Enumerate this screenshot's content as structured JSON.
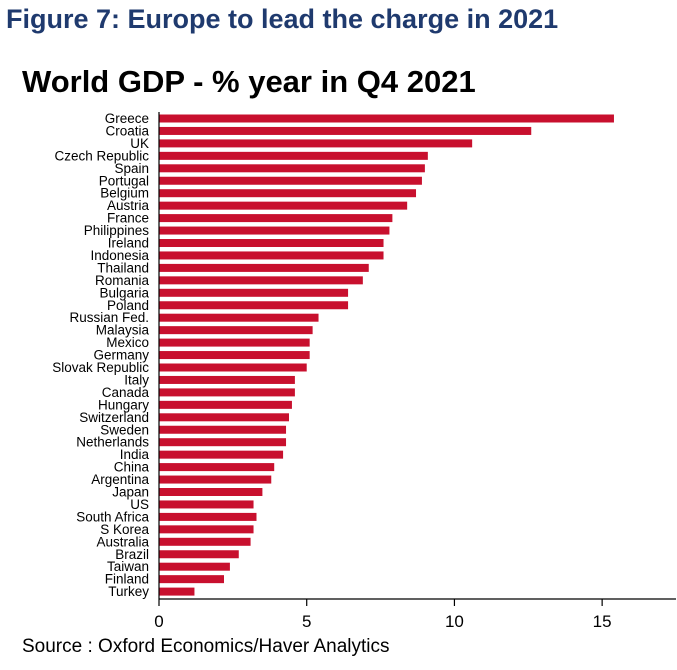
{
  "figure_title": "Figure 7: Europe to lead the charge in 2021",
  "source": "Source : Oxford Economics/Haver Analytics",
  "colors": {
    "bar": "#c8102e",
    "figure_title": "#1f3a6e"
  },
  "chart_data": {
    "type": "bar",
    "orientation": "horizontal",
    "title": "World GDP - % year in Q4 2021",
    "xlabel": "",
    "ylabel": "",
    "xlim": [
      0,
      17.5
    ],
    "xticks": [
      0,
      5,
      10,
      15
    ],
    "grid": false,
    "categories": [
      "Greece",
      "Croatia",
      "UK",
      "Czech Republic",
      "Spain",
      "Portugal",
      "Belgium",
      "Austria",
      "France",
      "Philippines",
      "Ireland",
      "Indonesia",
      "Thailand",
      "Romania",
      "Bulgaria",
      "Poland",
      "Russian Fed.",
      "Malaysia",
      "Mexico",
      "Germany",
      "Slovak Republic",
      "Italy",
      "Canada",
      "Hungary",
      "Switzerland",
      "Sweden",
      "Netherlands",
      "India",
      "China",
      "Argentina",
      "Japan",
      "US",
      "South Africa",
      "S Korea",
      "Australia",
      "Brazil",
      "Taiwan",
      "Finland",
      "Turkey"
    ],
    "values": [
      15.4,
      12.6,
      10.6,
      9.1,
      9.0,
      8.9,
      8.7,
      8.4,
      7.9,
      7.8,
      7.6,
      7.6,
      7.1,
      6.9,
      6.4,
      6.4,
      5.4,
      5.2,
      5.1,
      5.1,
      5.0,
      4.6,
      4.6,
      4.5,
      4.4,
      4.3,
      4.3,
      4.2,
      3.9,
      3.8,
      3.5,
      3.2,
      3.3,
      3.2,
      3.1,
      2.7,
      2.4,
      2.2,
      1.2
    ]
  }
}
